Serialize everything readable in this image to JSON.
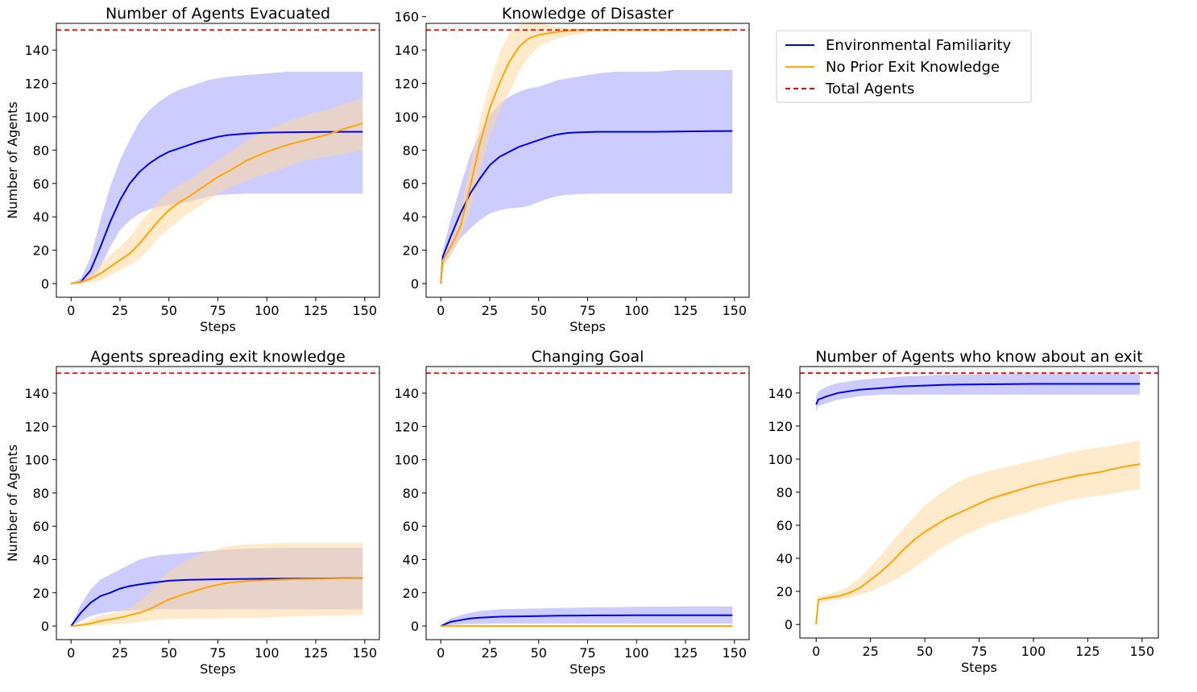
{
  "colors": {
    "environmental": "#0000ee",
    "environmental_band": "#aaaaff",
    "no_prior": "#ffa500",
    "no_prior_band": "#ffd9a0",
    "total": "#ee0000"
  },
  "legend": [
    {
      "label": "Environmental Familiarity",
      "color": "#0000ee",
      "style": "solid"
    },
    {
      "label": "No Prior Exit Knowledge",
      "color": "#ffa500",
      "style": "solid"
    },
    {
      "label": "Total Agents",
      "color": "#ee0000",
      "style": "dashed"
    }
  ],
  "chart_data": [
    {
      "type": "line",
      "title": "Number of Agents Evacuated",
      "xlabel": "Steps",
      "ylabel": "Number of Agents",
      "xlim": [
        0,
        150
      ],
      "ylim": [
        0,
        150
      ],
      "xticks": [
        0,
        25,
        50,
        75,
        100,
        125,
        150
      ],
      "yticks": [
        0,
        20,
        40,
        60,
        80,
        100,
        120,
        140
      ],
      "total_agents": 152,
      "series": [
        {
          "name": "Environmental Familiarity",
          "x": [
            0,
            5,
            10,
            15,
            20,
            25,
            30,
            35,
            40,
            45,
            50,
            55,
            60,
            65,
            70,
            75,
            80,
            90,
            100,
            110,
            120,
            130,
            140,
            149
          ],
          "mean": [
            0,
            1,
            8,
            22,
            37,
            50,
            60,
            67,
            72,
            76,
            79,
            81,
            83,
            85,
            86.5,
            88,
            89,
            90,
            90.5,
            90.7,
            90.8,
            90.9,
            91,
            91
          ],
          "upper": [
            0,
            3,
            16,
            38,
            58,
            74,
            86,
            97,
            104,
            109,
            113,
            116,
            118,
            120,
            122,
            123,
            124,
            125,
            126,
            127,
            127,
            127,
            127,
            127
          ],
          "lower": [
            0,
            0,
            2,
            10,
            22,
            32,
            38,
            42,
            44.5,
            46,
            47,
            48,
            49,
            50.5,
            52,
            53,
            53.5,
            54,
            54,
            54,
            54,
            54,
            54,
            54
          ]
        },
        {
          "name": "No Prior Exit Knowledge",
          "x": [
            0,
            5,
            10,
            15,
            20,
            25,
            30,
            35,
            40,
            45,
            50,
            55,
            60,
            65,
            70,
            75,
            80,
            90,
            100,
            110,
            120,
            130,
            140,
            149
          ],
          "mean": [
            0,
            1,
            3,
            6,
            10,
            14,
            18,
            24,
            31,
            38,
            44,
            48.5,
            52,
            56,
            60,
            64,
            67,
            74,
            79,
            83,
            86,
            89,
            93,
            96
          ],
          "upper": [
            0,
            2,
            6,
            12,
            17,
            22,
            28,
            36,
            43,
            50,
            55,
            59,
            62,
            66,
            70,
            74,
            78,
            86,
            92,
            97,
            101,
            104,
            108,
            111
          ],
          "lower": [
            0,
            0,
            0.5,
            2,
            5,
            8,
            11,
            15,
            21,
            28,
            33,
            38,
            42,
            46,
            50,
            54,
            57,
            62,
            66,
            70,
            74,
            76,
            78,
            80
          ]
        }
      ]
    },
    {
      "type": "line",
      "title": "Knowledge of Disaster",
      "xlabel": "Steps",
      "ylabel": "",
      "xlim": [
        0,
        150
      ],
      "ylim": [
        0,
        160
      ],
      "xticks": [
        0,
        25,
        50,
        75,
        100,
        125,
        150
      ],
      "yticks": [
        0,
        20,
        40,
        60,
        80,
        100,
        120,
        140,
        160
      ],
      "total_agents": 152,
      "series": [
        {
          "name": "Environmental Familiarity",
          "x": [
            0,
            1,
            5,
            10,
            15,
            20,
            25,
            30,
            35,
            40,
            45,
            50,
            55,
            60,
            65,
            70,
            75,
            80,
            90,
            100,
            110,
            120,
            130,
            140,
            149
          ],
          "mean": [
            0,
            16,
            28,
            42,
            54,
            63,
            71,
            76,
            79,
            82,
            84,
            86,
            88,
            89.5,
            90.3,
            90.6,
            90.8,
            91,
            91,
            91,
            91,
            91.2,
            91.3,
            91.4,
            91.5
          ],
          "upper": [
            0,
            20,
            38,
            58,
            77,
            90,
            101,
            108,
            112,
            115,
            117,
            118,
            120,
            122,
            123,
            124,
            125,
            126,
            127,
            127,
            127,
            128,
            128,
            128,
            128
          ],
          "lower": [
            0,
            10,
            18,
            27,
            33,
            38,
            42,
            44,
            45,
            45.5,
            46.5,
            49,
            51,
            52.5,
            53.3,
            53.6,
            53.8,
            54,
            54,
            54,
            54,
            54,
            54,
            54,
            54
          ]
        },
        {
          "name": "No Prior Exit Knowledge",
          "x": [
            0,
            1,
            5,
            10,
            15,
            20,
            25,
            30,
            35,
            40,
            45,
            50,
            55,
            60,
            65,
            70,
            75,
            80,
            90,
            100,
            110,
            120,
            130,
            140,
            149
          ],
          "mean": [
            0,
            14,
            22,
            34,
            58,
            84,
            105,
            120,
            133,
            142,
            147,
            149,
            150,
            151,
            151.5,
            152,
            152,
            152,
            152,
            152,
            152,
            152,
            152,
            152,
            152
          ],
          "upper": [
            0,
            18,
            29,
            44,
            71,
            98,
            120,
            138,
            150,
            155,
            157,
            157,
            155,
            154,
            153,
            153,
            152.5,
            152.5,
            152.5,
            152.5,
            152.5,
            152.5,
            152.5,
            152.5,
            152.5
          ],
          "lower": [
            0,
            10,
            16,
            27,
            45,
            68,
            88,
            103,
            115,
            127,
            136,
            142,
            145,
            147,
            148.5,
            149.5,
            150.5,
            151,
            151.5,
            151.5,
            151.5,
            151.5,
            151.5,
            151.5,
            151.5
          ]
        }
      ]
    },
    {
      "type": "line",
      "title": "Agents spreading exit knowledge",
      "xlabel": "Steps",
      "ylabel": "Number of Agents",
      "xlim": [
        0,
        150
      ],
      "ylim": [
        0,
        150
      ],
      "xticks": [
        0,
        25,
        50,
        75,
        100,
        125,
        150
      ],
      "yticks": [
        0,
        20,
        40,
        60,
        80,
        100,
        120,
        140
      ],
      "total_agents": 152,
      "series": [
        {
          "name": "Environmental Familiarity",
          "x": [
            0,
            5,
            10,
            15,
            20,
            25,
            30,
            35,
            40,
            45,
            50,
            60,
            70,
            80,
            90,
            100,
            110,
            120,
            130,
            140,
            149
          ],
          "mean": [
            0,
            8,
            14,
            18,
            20,
            22.5,
            24,
            25,
            25.8,
            26.5,
            27.2,
            27.8,
            28,
            28.2,
            28.3,
            28.4,
            28.5,
            28.5,
            28.6,
            28.7,
            28.8
          ],
          "upper": [
            0,
            13,
            22,
            28,
            31,
            34,
            37,
            40,
            41.5,
            42.5,
            43,
            44,
            45,
            46,
            46.5,
            46.8,
            47,
            47,
            47,
            47,
            47
          ],
          "lower": [
            0,
            3,
            6,
            7.5,
            8.5,
            9,
            9.3,
            9.6,
            9.8,
            10,
            10,
            10,
            10,
            10,
            10,
            10,
            10,
            10,
            10,
            10,
            10
          ]
        },
        {
          "name": "No Prior Exit Knowledge",
          "x": [
            0,
            5,
            10,
            15,
            20,
            25,
            30,
            35,
            40,
            45,
            50,
            60,
            70,
            80,
            90,
            100,
            110,
            120,
            130,
            140,
            149
          ],
          "mean": [
            0,
            0.5,
            1.5,
            3,
            4,
            5,
            6.5,
            8,
            10,
            13,
            16,
            20,
            23.5,
            26,
            27,
            27.5,
            28,
            28.2,
            28.4,
            28.6,
            28.8
          ],
          "upper": [
            0,
            1.5,
            4,
            6.5,
            7.5,
            9,
            11,
            15,
            20,
            27,
            33,
            40,
            45,
            48,
            49,
            49.5,
            50,
            50,
            50,
            50,
            50
          ],
          "lower": [
            0,
            0,
            0.2,
            0.5,
            0.8,
            1.2,
            1.8,
            2.5,
            3.2,
            3.8,
            4.2,
            4.5,
            4.6,
            4.7,
            4.8,
            5,
            5.5,
            6,
            6.2,
            6.4,
            6.6
          ]
        }
      ]
    },
    {
      "type": "line",
      "title": "Changing Goal",
      "xlabel": "Steps",
      "ylabel": "",
      "xlim": [
        0,
        150
      ],
      "ylim": [
        0,
        150
      ],
      "xticks": [
        0,
        25,
        50,
        75,
        100,
        125,
        150
      ],
      "yticks": [
        0,
        20,
        40,
        60,
        80,
        100,
        120,
        140
      ],
      "total_agents": 152,
      "series": [
        {
          "name": "Environmental Familiarity",
          "x": [
            0,
            5,
            10,
            15,
            20,
            25,
            30,
            40,
            50,
            60,
            70,
            80,
            90,
            100,
            110,
            120,
            130,
            140,
            149
          ],
          "mean": [
            0,
            2.5,
            3.5,
            4.5,
            5,
            5.3,
            5.6,
            5.8,
            6,
            6.2,
            6.3,
            6.4,
            6.4,
            6.5,
            6.5,
            6.5,
            6.5,
            6.5,
            6.5
          ],
          "upper": [
            0,
            4.5,
            6.5,
            8,
            9,
            9.5,
            10,
            10.3,
            10.5,
            10.8,
            11,
            11.2,
            11.3,
            11.5,
            11.6,
            11.7,
            11.8,
            11.8,
            11.8
          ],
          "lower": [
            0,
            0.5,
            1,
            1.2,
            1.3,
            1.4,
            1.5,
            1.5,
            1.5,
            1.5,
            1.5,
            1.5,
            1.5,
            1.5,
            1.5,
            1.5,
            1.5,
            1.5,
            1.5
          ]
        },
        {
          "name": "No Prior Exit Knowledge",
          "x": [
            0,
            25,
            50,
            75,
            100,
            125,
            149
          ],
          "mean": [
            0,
            0,
            0,
            0,
            0,
            0,
            0
          ],
          "upper": [
            0,
            0,
            0,
            0,
            0,
            0,
            0
          ],
          "lower": [
            0,
            0,
            0,
            0,
            0,
            0,
            0
          ]
        }
      ]
    },
    {
      "type": "line",
      "title": "Number of Agents who know about an exit",
      "xlabel": "Steps",
      "ylabel": "",
      "xlim": [
        0,
        150
      ],
      "ylim": [
        0,
        150
      ],
      "xticks": [
        0,
        25,
        50,
        75,
        100,
        125,
        150
      ],
      "yticks": [
        0,
        20,
        40,
        60,
        80,
        100,
        120,
        140
      ],
      "total_agents": 152,
      "series": [
        {
          "name": "Environmental Familiarity",
          "x": [
            0,
            1,
            5,
            10,
            15,
            20,
            25,
            30,
            40,
            50,
            60,
            70,
            80,
            90,
            100,
            110,
            120,
            130,
            140,
            149
          ],
          "mean": [
            133,
            136,
            138,
            140,
            141,
            142,
            142.5,
            143,
            144,
            144.5,
            145,
            145.2,
            145.3,
            145.4,
            145.5,
            145.5,
            145.5,
            145.5,
            145.5,
            145.5
          ],
          "upper": [
            138,
            141,
            144,
            146,
            147,
            148,
            148.5,
            149,
            150,
            150.5,
            151,
            151.2,
            151.4,
            151.5,
            151.5,
            151.5,
            151.5,
            151.5,
            151.5,
            151.5
          ],
          "lower": [
            129,
            132,
            134,
            136,
            137,
            138,
            138.5,
            139,
            139,
            139,
            139,
            139,
            139,
            139,
            139,
            139,
            139,
            139,
            139,
            139
          ]
        },
        {
          "name": "No Prior Exit Knowledge",
          "x": [
            0,
            1,
            5,
            10,
            15,
            20,
            25,
            30,
            35,
            40,
            45,
            50,
            55,
            60,
            65,
            70,
            75,
            80,
            90,
            100,
            110,
            120,
            130,
            140,
            149
          ],
          "mean": [
            0,
            15,
            16,
            17,
            19,
            22,
            27,
            32,
            38,
            45,
            51,
            56,
            60,
            64,
            67,
            70,
            73,
            76,
            80,
            84,
            87,
            90,
            92,
            95,
            97
          ],
          "upper": [
            0,
            17,
            18,
            20,
            23,
            28,
            35,
            42,
            50,
            58,
            65,
            72,
            77,
            82,
            86,
            89,
            91,
            93,
            96,
            99,
            102,
            105,
            107,
            109,
            111
          ],
          "lower": [
            0,
            13,
            14,
            15,
            16,
            18,
            20,
            23,
            26,
            30,
            34,
            39,
            44,
            48,
            52,
            55,
            58,
            61,
            65,
            69,
            73,
            76,
            78,
            80,
            82
          ]
        }
      ]
    }
  ]
}
